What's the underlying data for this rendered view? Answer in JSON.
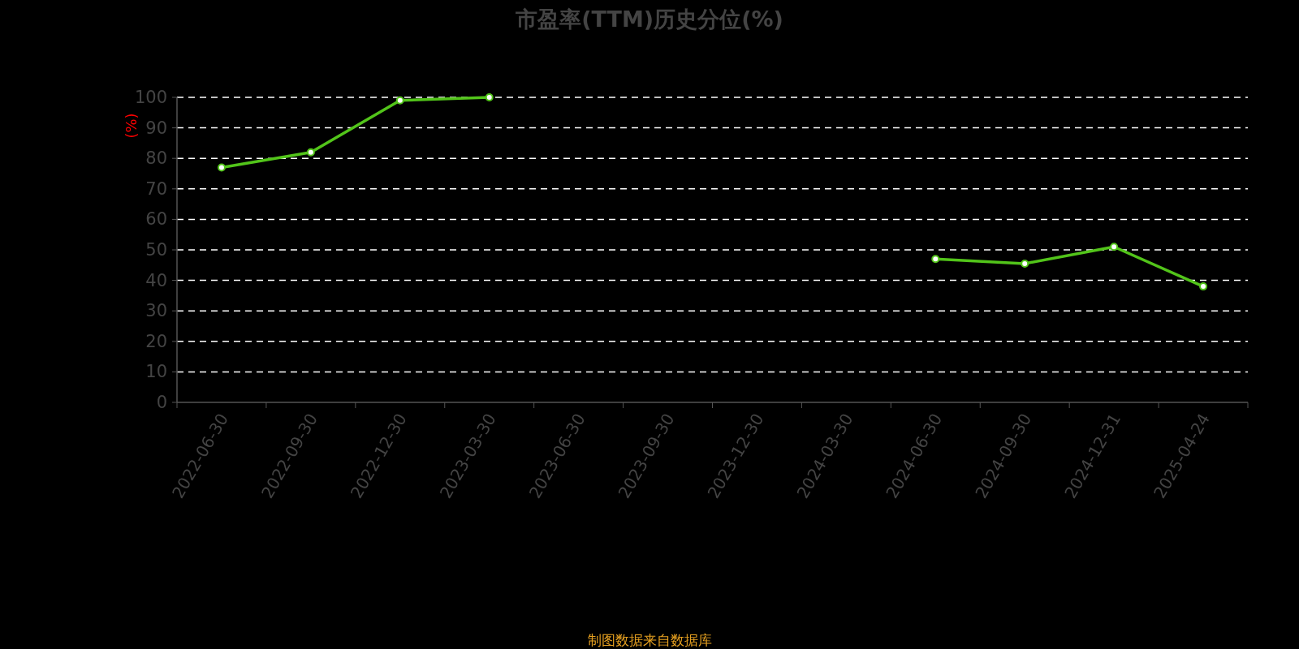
{
  "chart_data": {
    "type": "line",
    "title": "市盈率(TTM)历史分位(%)",
    "ylabel": "(%)",
    "categories": [
      "2022-06-30",
      "2022-09-30",
      "2022-12-30",
      "2023-03-30",
      "2023-06-30",
      "2023-09-30",
      "2023-12-30",
      "2024-03-30",
      "2024-06-30",
      "2024-09-30",
      "2024-12-31",
      "2025-04-24"
    ],
    "values": [
      77,
      82,
      99,
      100,
      null,
      null,
      null,
      null,
      47,
      45.5,
      51,
      38
    ],
    "color": "#52c41a",
    "ylim": [
      0,
      100
    ],
    "yticks": [
      0,
      10,
      20,
      30,
      40,
      50,
      60,
      70,
      80,
      90,
      100
    ],
    "grid": "y",
    "marker": "circle",
    "line_style": "solid",
    "annotations": [
      "制图数据来自数据库"
    ]
  }
}
